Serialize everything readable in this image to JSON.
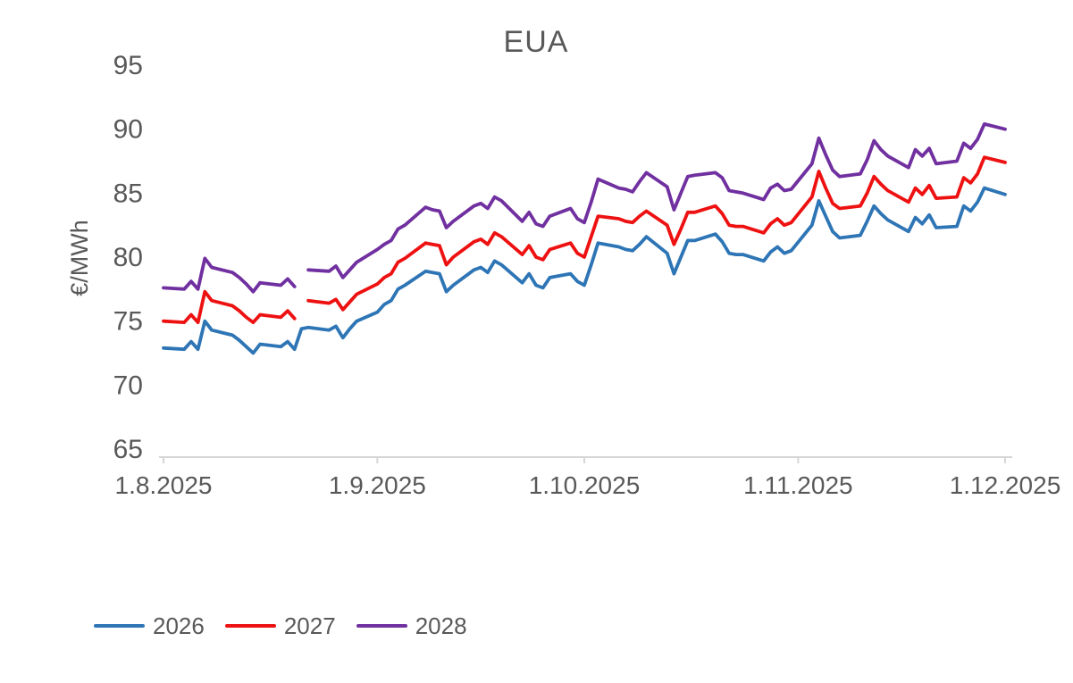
{
  "title": "EUA",
  "chart_data": {
    "type": "line",
    "title": "EUA",
    "xlabel": "",
    "ylabel": "€/MWh",
    "ylim": [
      65,
      95
    ],
    "y_ticks": [
      95,
      90,
      85,
      80,
      75,
      70,
      65
    ],
    "grid": false,
    "legend_position": "bottom-left",
    "x_unit": "days since 1.8.2025, weekday closing values",
    "x_domain_days": [
      0,
      122
    ],
    "x_ticks": [
      {
        "label": "1.8.2025",
        "day": 0
      },
      {
        "label": "1.9.2025",
        "day": 31
      },
      {
        "label": "1.10.2025",
        "day": 61
      },
      {
        "label": "1.11.2025",
        "day": 92
      },
      {
        "label": "1.12.2025",
        "day": 122
      }
    ],
    "series": [
      {
        "name": "2026",
        "color": "#2E75B6",
        "points": [
          [
            0,
            72.9
          ],
          [
            3,
            72.8
          ],
          [
            4,
            73.4
          ],
          [
            5,
            72.8
          ],
          [
            6,
            75.0
          ],
          [
            7,
            74.3
          ],
          [
            10,
            73.9
          ],
          [
            11,
            73.5
          ],
          [
            12,
            73.0
          ],
          [
            13,
            72.5
          ],
          [
            14,
            73.2
          ],
          [
            17,
            73.0
          ],
          [
            18,
            73.4
          ],
          [
            19,
            72.8
          ],
          [
            20,
            74.4
          ],
          [
            21,
            74.5
          ],
          [
            24,
            74.3
          ],
          [
            25,
            74.6
          ],
          [
            26,
            73.7
          ],
          [
            27,
            74.4
          ],
          [
            28,
            75.0
          ],
          [
            31,
            75.7
          ],
          [
            32,
            76.3
          ],
          [
            33,
            76.6
          ],
          [
            34,
            77.5
          ],
          [
            35,
            77.8
          ],
          [
            38,
            78.9
          ],
          [
            39,
            78.8
          ],
          [
            40,
            78.7
          ],
          [
            41,
            77.3
          ],
          [
            42,
            77.8
          ],
          [
            45,
            79.0
          ],
          [
            46,
            79.2
          ],
          [
            47,
            78.8
          ],
          [
            48,
            79.7
          ],
          [
            49,
            79.4
          ],
          [
            52,
            78.0
          ],
          [
            53,
            78.7
          ],
          [
            54,
            77.8
          ],
          [
            55,
            77.6
          ],
          [
            56,
            78.4
          ],
          [
            59,
            78.7
          ],
          [
            60,
            78.1
          ],
          [
            61,
            77.8
          ],
          [
            62,
            79.4
          ],
          [
            63,
            81.1
          ],
          [
            66,
            80.8
          ],
          [
            67,
            80.6
          ],
          [
            68,
            80.5
          ],
          [
            69,
            81.0
          ],
          [
            70,
            81.6
          ],
          [
            73,
            80.3
          ],
          [
            74,
            78.7
          ],
          [
            75,
            80.0
          ],
          [
            76,
            81.3
          ],
          [
            77,
            81.3
          ],
          [
            80,
            81.8
          ],
          [
            81,
            81.2
          ],
          [
            82,
            80.3
          ],
          [
            83,
            80.2
          ],
          [
            84,
            80.2
          ],
          [
            87,
            79.7
          ],
          [
            88,
            80.4
          ],
          [
            89,
            80.8
          ],
          [
            90,
            80.3
          ],
          [
            91,
            80.5
          ],
          [
            94,
            82.5
          ],
          [
            95,
            84.4
          ],
          [
            96,
            83.2
          ],
          [
            97,
            82.0
          ],
          [
            98,
            81.5
          ],
          [
            101,
            81.7
          ],
          [
            102,
            82.8
          ],
          [
            103,
            84.0
          ],
          [
            104,
            83.4
          ],
          [
            105,
            82.9
          ],
          [
            108,
            82.0
          ],
          [
            109,
            83.1
          ],
          [
            110,
            82.6
          ],
          [
            111,
            83.3
          ],
          [
            112,
            82.3
          ],
          [
            115,
            82.4
          ],
          [
            116,
            84.0
          ],
          [
            117,
            83.6
          ],
          [
            118,
            84.3
          ],
          [
            119,
            85.4
          ],
          [
            122,
            84.9
          ]
        ]
      },
      {
        "name": "2027",
        "color": "#EE1111",
        "points": [
          [
            0,
            75.0
          ],
          [
            3,
            74.9
          ],
          [
            4,
            75.5
          ],
          [
            5,
            74.9
          ],
          [
            6,
            77.3
          ],
          [
            7,
            76.6
          ],
          [
            10,
            76.2
          ],
          [
            11,
            75.8
          ],
          [
            12,
            75.3
          ],
          [
            13,
            74.9
          ],
          [
            14,
            75.5
          ],
          [
            17,
            75.3
          ],
          [
            18,
            75.8
          ],
          [
            19,
            75.2
          ],
          [
            20,
            null
          ],
          [
            21,
            76.6
          ],
          [
            24,
            76.4
          ],
          [
            25,
            76.7
          ],
          [
            26,
            75.9
          ],
          [
            27,
            76.5
          ],
          [
            28,
            77.1
          ],
          [
            31,
            77.9
          ],
          [
            32,
            78.4
          ],
          [
            33,
            78.7
          ],
          [
            34,
            79.6
          ],
          [
            35,
            79.9
          ],
          [
            38,
            81.1
          ],
          [
            39,
            81.0
          ],
          [
            40,
            80.9
          ],
          [
            41,
            79.4
          ],
          [
            42,
            80.0
          ],
          [
            45,
            81.2
          ],
          [
            46,
            81.4
          ],
          [
            47,
            81.0
          ],
          [
            48,
            81.9
          ],
          [
            49,
            81.6
          ],
          [
            52,
            80.2
          ],
          [
            53,
            80.9
          ],
          [
            54,
            80.0
          ],
          [
            55,
            79.8
          ],
          [
            56,
            80.6
          ],
          [
            59,
            81.1
          ],
          [
            60,
            80.3
          ],
          [
            61,
            80.0
          ],
          [
            62,
            81.6
          ],
          [
            63,
            83.2
          ],
          [
            66,
            83.0
          ],
          [
            67,
            82.8
          ],
          [
            68,
            82.7
          ],
          [
            69,
            83.2
          ],
          [
            70,
            83.6
          ],
          [
            73,
            82.5
          ],
          [
            74,
            81.0
          ],
          [
            75,
            82.2
          ],
          [
            76,
            83.5
          ],
          [
            77,
            83.5
          ],
          [
            80,
            84.0
          ],
          [
            81,
            83.4
          ],
          [
            82,
            82.5
          ],
          [
            83,
            82.4
          ],
          [
            84,
            82.4
          ],
          [
            87,
            81.9
          ],
          [
            88,
            82.6
          ],
          [
            89,
            83.0
          ],
          [
            90,
            82.5
          ],
          [
            91,
            82.7
          ],
          [
            94,
            84.7
          ],
          [
            95,
            86.7
          ],
          [
            96,
            85.4
          ],
          [
            97,
            84.2
          ],
          [
            98,
            83.8
          ],
          [
            101,
            84.0
          ],
          [
            102,
            85.0
          ],
          [
            103,
            86.3
          ],
          [
            104,
            85.7
          ],
          [
            105,
            85.2
          ],
          [
            108,
            84.3
          ],
          [
            109,
            85.4
          ],
          [
            110,
            84.9
          ],
          [
            111,
            85.6
          ],
          [
            112,
            84.6
          ],
          [
            115,
            84.7
          ],
          [
            116,
            86.2
          ],
          [
            117,
            85.8
          ],
          [
            118,
            86.5
          ],
          [
            119,
            87.8
          ],
          [
            122,
            87.4
          ]
        ]
      },
      {
        "name": "2028",
        "color": "#7030A0",
        "points": [
          [
            0,
            77.6
          ],
          [
            3,
            77.5
          ],
          [
            4,
            78.1
          ],
          [
            5,
            77.5
          ],
          [
            6,
            79.9
          ],
          [
            7,
            79.2
          ],
          [
            10,
            78.8
          ],
          [
            11,
            78.4
          ],
          [
            12,
            77.9
          ],
          [
            13,
            77.3
          ],
          [
            14,
            78.0
          ],
          [
            17,
            77.8
          ],
          [
            18,
            78.3
          ],
          [
            19,
            77.7
          ],
          [
            20,
            null
          ],
          [
            21,
            79.0
          ],
          [
            24,
            78.9
          ],
          [
            25,
            79.3
          ],
          [
            26,
            78.4
          ],
          [
            27,
            79.0
          ],
          [
            28,
            79.6
          ],
          [
            31,
            80.6
          ],
          [
            32,
            81.0
          ],
          [
            33,
            81.3
          ],
          [
            34,
            82.2
          ],
          [
            35,
            82.5
          ],
          [
            38,
            83.9
          ],
          [
            39,
            83.7
          ],
          [
            40,
            83.6
          ],
          [
            41,
            82.3
          ],
          [
            42,
            82.8
          ],
          [
            45,
            84.0
          ],
          [
            46,
            84.2
          ],
          [
            47,
            83.8
          ],
          [
            48,
            84.7
          ],
          [
            49,
            84.4
          ],
          [
            52,
            82.8
          ],
          [
            53,
            83.5
          ],
          [
            54,
            82.6
          ],
          [
            55,
            82.4
          ],
          [
            56,
            83.2
          ],
          [
            59,
            83.8
          ],
          [
            60,
            83.0
          ],
          [
            61,
            82.7
          ],
          [
            62,
            84.3
          ],
          [
            63,
            86.1
          ],
          [
            66,
            85.4
          ],
          [
            67,
            85.3
          ],
          [
            68,
            85.1
          ],
          [
            69,
            85.9
          ],
          [
            70,
            86.6
          ],
          [
            73,
            85.5
          ],
          [
            74,
            83.7
          ],
          [
            75,
            85.0
          ],
          [
            76,
            86.3
          ],
          [
            77,
            86.4
          ],
          [
            80,
            86.6
          ],
          [
            81,
            86.2
          ],
          [
            82,
            85.2
          ],
          [
            83,
            85.1
          ],
          [
            84,
            85.0
          ],
          [
            87,
            84.5
          ],
          [
            88,
            85.4
          ],
          [
            89,
            85.7
          ],
          [
            90,
            85.2
          ],
          [
            91,
            85.3
          ],
          [
            94,
            87.3
          ],
          [
            95,
            89.3
          ],
          [
            96,
            88.0
          ],
          [
            97,
            86.8
          ],
          [
            98,
            86.3
          ],
          [
            101,
            86.5
          ],
          [
            102,
            87.6
          ],
          [
            103,
            89.1
          ],
          [
            104,
            88.4
          ],
          [
            105,
            87.9
          ],
          [
            108,
            87.0
          ],
          [
            109,
            88.4
          ],
          [
            110,
            87.9
          ],
          [
            111,
            88.5
          ],
          [
            112,
            87.3
          ],
          [
            115,
            87.5
          ],
          [
            116,
            88.9
          ],
          [
            117,
            88.5
          ],
          [
            118,
            89.2
          ],
          [
            119,
            90.4
          ],
          [
            122,
            90.0
          ]
        ]
      }
    ]
  }
}
